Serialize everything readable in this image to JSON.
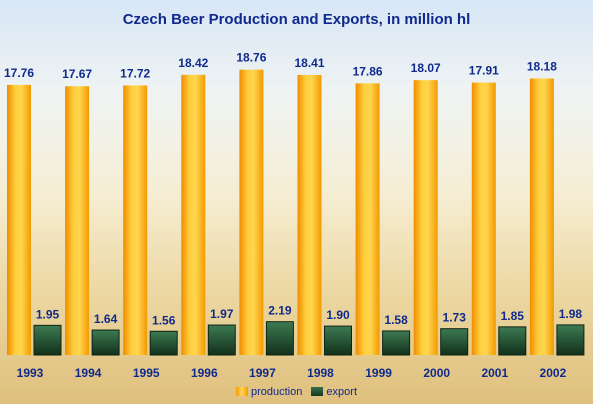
{
  "chart_data": {
    "type": "bar",
    "title": "Czech Beer Production and Exports, in million hl",
    "categories": [
      "1993",
      "1994",
      "1995",
      "1996",
      "1997",
      "1998",
      "1999",
      "2000",
      "2001",
      "2002"
    ],
    "series": [
      {
        "name": "production",
        "values": [
          17.76,
          17.67,
          17.72,
          18.42,
          18.76,
          18.41,
          17.86,
          18.07,
          17.91,
          18.18
        ],
        "color": "#f7b00a"
      },
      {
        "name": "export",
        "values": [
          1.95,
          1.64,
          1.56,
          1.97,
          2.19,
          1.9,
          1.58,
          1.73,
          1.85,
          1.98
        ],
        "color": "#1f4a2c"
      }
    ],
    "value_labels": {
      "production": [
        "17.76",
        "17.67",
        "17.72",
        "18.42",
        "18.76",
        "18.41",
        "17.86",
        "18.07",
        "17.91",
        "18.18"
      ],
      "export": [
        "1.95",
        "1.64",
        "1.56",
        "1.97",
        "2.19",
        "1.90",
        "1.58",
        "1.73",
        "1.85",
        "1.98"
      ]
    },
    "xlabel": "",
    "ylabel": "",
    "ylim": [
      0,
      19
    ],
    "grid": false,
    "legend_position": "bottom-center",
    "label_color": "#0f2a8c"
  }
}
